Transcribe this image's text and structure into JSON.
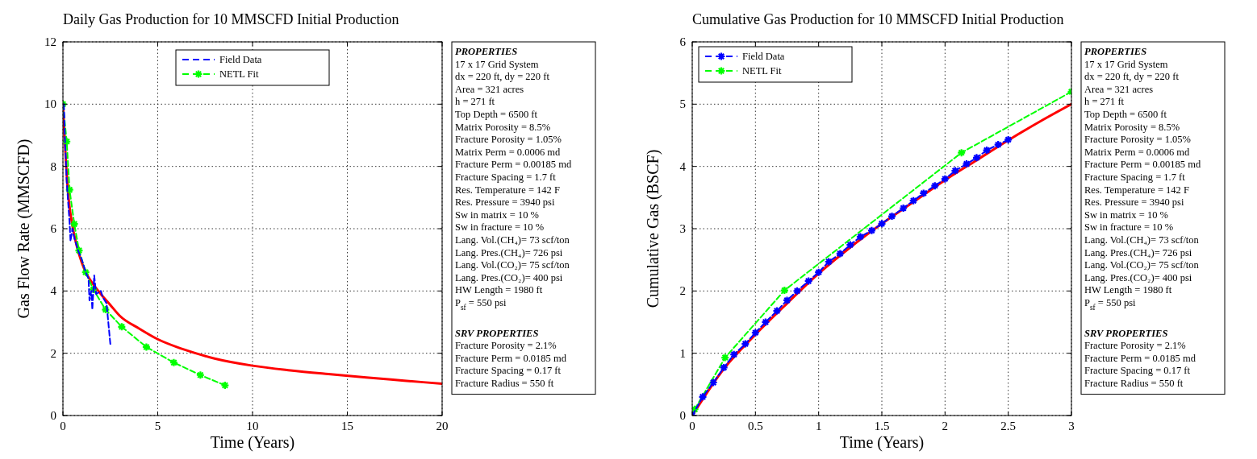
{
  "chart_data": [
    {
      "type": "line",
      "title": "Daily Gas Production for 10 MMSCFD Initial Production",
      "xlabel": "Time (Years)",
      "ylabel": "Gas Flow Rate (MMSCFD)",
      "xlim": [
        0,
        20
      ],
      "xticks": [
        0,
        5,
        10,
        15,
        20
      ],
      "ylim": [
        0,
        12
      ],
      "yticks": [
        0,
        2,
        4,
        6,
        8,
        10,
        12
      ],
      "grid": true,
      "legend": "top",
      "series": [
        {
          "name": "Field Data",
          "color": "#0000ff",
          "line_style": "dashed",
          "marker": "none",
          "x": [
            0.05,
            0.1,
            0.2,
            0.35,
            0.4,
            0.5,
            0.6,
            0.8,
            1.0,
            1.2,
            1.35,
            1.4,
            1.5,
            1.55,
            1.65,
            1.75,
            2.0,
            2.1,
            2.3,
            2.5
          ],
          "values": [
            10,
            9.0,
            7.5,
            6.2,
            5.6,
            6.0,
            5.7,
            5.3,
            5.0,
            4.6,
            4.4,
            3.7,
            4.0,
            3.4,
            4.5,
            3.9,
            4.0,
            3.8,
            3.6,
            2.3
          ]
        },
        {
          "name": "NETL Fit",
          "color": "#00ff00",
          "line_style": "dashed",
          "marker": "cross",
          "x": [
            0,
            0.2,
            0.35,
            0.6,
            0.85,
            1.2,
            1.6,
            2.25,
            3.1,
            4.4,
            5.85,
            7.25,
            8.55
          ],
          "values": [
            10,
            8.8,
            7.25,
            6.15,
            5.3,
            4.6,
            4.05,
            3.4,
            2.85,
            2.2,
            1.7,
            1.3,
            0.97
          ]
        },
        {
          "color": "#ff0000",
          "line_style": "solid",
          "marker": "none",
          "x": [
            0,
            0.1,
            0.25,
            0.5,
            0.75,
            1,
            1.25,
            1.5,
            2,
            2.5,
            3,
            4,
            5,
            6,
            7,
            8,
            10,
            12,
            14,
            16,
            18,
            20
          ],
          "values": [
            10,
            8.8,
            7.3,
            6.1,
            5.4,
            4.9,
            4.55,
            4.3,
            3.9,
            3.55,
            3.2,
            2.8,
            2.45,
            2.2,
            2.0,
            1.83,
            1.6,
            1.45,
            1.33,
            1.22,
            1.12,
            1.02
          ]
        }
      ],
      "annotations": [
        "PROPERTIES",
        "17 x 17 Grid System",
        "dx = 220 ft, dy = 220 ft",
        "Area = 321 acres",
        "h = 271 ft",
        "Top Depth = 6500 ft",
        "Matrix Porosity = 8.5%",
        "Fracture Porosity = 1.05%",
        "Matrix Perm = 0.0006 md",
        "Fracture Perm = 0.00185 md",
        "Fracture Spacing = 1.7 ft",
        "Res. Temperature = 142 F",
        "Res. Pressure = 3940 psi",
        "Sw in matrix = 10 %",
        "Sw in fracture = 10 %",
        "Lang. Vol.(CH₄)= 73 scf/ton",
        "Lang. Pres.(CH₄)= 726 psi",
        "Lang. Vol.(CO₂)= 75 scf/ton",
        "Lang. Pres.(CO₂)= 400 psi",
        "HW Length = 1980 ft",
        "P$_{sf}$ = 550 psi",
        "SRV PROPERTIES",
        "Fracture Porosity = 2.1%",
        "Fracture Perm = 0.0185 md",
        "Fracture Spacing = 0.17 ft",
        "Fracture Radius = 550 ft"
      ]
    },
    {
      "type": "line",
      "title": "Cumulative Gas Production for 10 MMSCFD Initial Production",
      "xlabel": "Time (Years)",
      "ylabel": "Cumulative Gas (BSCF)",
      "xlim": [
        0,
        3
      ],
      "xticks": [
        0,
        0.5,
        1,
        1.5,
        2,
        2.5,
        3
      ],
      "ylim": [
        0,
        6
      ],
      "yticks": [
        0,
        1,
        2,
        3,
        4,
        5,
        6
      ],
      "grid": true,
      "legend": "top left",
      "series": [
        {
          "name": "Field Data",
          "color": "#0000ff",
          "line_style": "dashed",
          "marker": "cross",
          "x": [
            0,
            0.083,
            0.167,
            0.25,
            0.33,
            0.42,
            0.5,
            0.58,
            0.67,
            0.75,
            0.83,
            0.92,
            1.0,
            1.08,
            1.17,
            1.25,
            1.33,
            1.42,
            1.5,
            1.58,
            1.67,
            1.75,
            1.83,
            1.92,
            2.0,
            2.08,
            2.17,
            2.25,
            2.33,
            2.42,
            2.5
          ],
          "values": [
            0,
            0.3,
            0.53,
            0.77,
            0.98,
            1.15,
            1.33,
            1.5,
            1.68,
            1.85,
            2.0,
            2.16,
            2.3,
            2.47,
            2.6,
            2.74,
            2.87,
            2.97,
            3.08,
            3.2,
            3.33,
            3.45,
            3.57,
            3.69,
            3.8,
            3.93,
            4.04,
            4.14,
            4.26,
            4.35,
            4.43
          ]
        },
        {
          "name": "NETL Fit",
          "color": "#00ff00",
          "line_style": "dashed",
          "marker": "cross",
          "x": [
            0.02,
            0.26,
            0.73,
            2.13,
            3.0
          ],
          "values": [
            0.1,
            0.93,
            2.01,
            4.22,
            5.2
          ]
        },
        {
          "color": "#ff0000",
          "line_style": "solid",
          "marker": "none",
          "x": [
            0,
            0.25,
            0.5,
            0.75,
            1.0,
            1.25,
            1.5,
            1.75,
            2.0,
            2.25,
            2.5,
            2.75,
            3.0
          ],
          "values": [
            0,
            0.75,
            1.3,
            1.8,
            2.28,
            2.7,
            3.08,
            3.43,
            3.78,
            4.1,
            4.42,
            4.72,
            5.0
          ]
        }
      ],
      "annotations": [
        "PROPERTIES",
        "17 x 17 Grid System",
        "dx = 220 ft, dy = 220 ft",
        "Area = 321 acres",
        "h = 271 ft",
        "Top Depth = 6500 ft",
        "Matrix Porosity = 8.5%",
        "Fracture Porosity = 1.05%",
        "Matrix Perm = 0.0006 md",
        "Fracture Perm = 0.00185 md",
        "Fracture Spacing = 1.7 ft",
        "Res. Temperature = 142 F",
        "Res. Pressure = 3940 psi",
        "Sw in matrix = 10 %",
        "Sw in fracture = 10 %",
        "Lang. Vol.(CH₄)= 73 scf/ton",
        "Lang. Pres.(CH₄)= 726 psi",
        "Lang. Vol.(CO₂)= 75 scf/ton",
        "Lang. Pres.(CO₂)= 400 psi",
        "HW Length = 1980 ft",
        "P$_{sf}$ = 550 psi",
        "SRV PROPERTIES",
        "Fracture Porosity = 2.1%",
        "Fracture Perm = 0.0185 md",
        "Fracture Spacing = 0.17 ft",
        "Fracture Radius = 550 ft"
      ]
    }
  ]
}
